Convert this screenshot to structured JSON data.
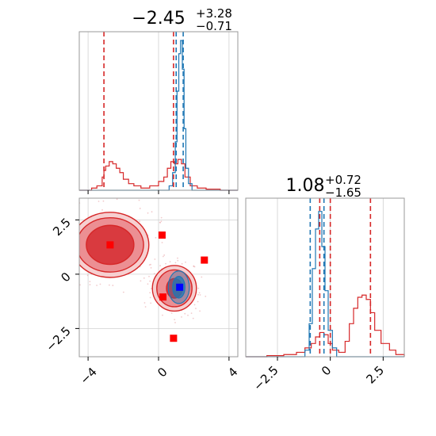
{
  "chart_data": [
    {
      "panel": "hist-param-1",
      "type": "histogram",
      "title": {
        "value": "−2.45",
        "upper": "+3.28",
        "lower": "−0.71"
      },
      "xlim": [
        -4.5,
        4.5
      ],
      "xticks": [
        -4,
        0,
        4
      ],
      "grid": true,
      "colors": {
        "red": "#d62728",
        "blue": "#1f77b4"
      },
      "series": [
        {
          "color": "red",
          "bins": [
            [
              -4.5,
              0
            ],
            [
              -3.8,
              1
            ],
            [
              -3.5,
              2
            ],
            [
              -3.2,
              6
            ],
            [
              -3.1,
              9
            ],
            [
              -3.0,
              11
            ],
            [
              -2.8,
              13
            ],
            [
              -2.6,
              12
            ],
            [
              -2.4,
              10
            ],
            [
              -2.2,
              8
            ],
            [
              -2.0,
              5
            ],
            [
              -1.7,
              3
            ],
            [
              -1.4,
              2
            ],
            [
              -1.0,
              1
            ],
            [
              -0.5,
              2
            ],
            [
              0.0,
              4
            ],
            [
              0.3,
              6
            ],
            [
              0.5,
              10
            ],
            [
              0.7,
              13
            ],
            [
              0.9,
              12
            ],
            [
              1.1,
              14
            ],
            [
              1.3,
              12
            ],
            [
              1.5,
              6
            ],
            [
              1.8,
              2
            ],
            [
              2.2,
              1
            ],
            [
              2.7,
              0.5
            ],
            [
              3.5,
              0
            ],
            [
              4.5,
              0
            ]
          ]
        },
        {
          "color": "blue",
          "bins": [
            [
              -4.5,
              0
            ],
            [
              0.4,
              0
            ],
            [
              0.6,
              2
            ],
            [
              0.8,
              8
            ],
            [
              0.95,
              22
            ],
            [
              1.05,
              45
            ],
            [
              1.15,
              62
            ],
            [
              1.25,
              68
            ],
            [
              1.35,
              55
            ],
            [
              1.45,
              28
            ],
            [
              1.55,
              10
            ],
            [
              1.7,
              3
            ],
            [
              1.9,
              0
            ],
            [
              4.5,
              0
            ]
          ]
        }
      ],
      "lines": [
        {
          "color": "red",
          "x": -3.1
        },
        {
          "color": "red",
          "x": 0.85
        },
        {
          "color": "blue",
          "x": 1.0
        },
        {
          "color": "blue",
          "x": 1.4
        }
      ]
    },
    {
      "panel": "hist-param-2",
      "type": "histogram",
      "title": {
        "value": "1.08",
        "upper": "+0.72",
        "lower": "−1.65"
      },
      "xlim": [
        -4.0,
        3.5
      ],
      "xticks": [
        -2.5,
        0.0,
        2.5
      ],
      "grid": true,
      "series": [
        {
          "color": "red",
          "bins": [
            [
              -4.0,
              0
            ],
            [
              -3.0,
              0.5
            ],
            [
              -2.2,
              1
            ],
            [
              -1.6,
              2
            ],
            [
              -1.2,
              4
            ],
            [
              -0.9,
              6
            ],
            [
              -0.7,
              9
            ],
            [
              -0.5,
              11
            ],
            [
              -0.3,
              10
            ],
            [
              -0.1,
              6
            ],
            [
              0.1,
              3
            ],
            [
              0.4,
              2
            ],
            [
              0.7,
              7
            ],
            [
              0.9,
              15
            ],
            [
              1.1,
              22
            ],
            [
              1.3,
              27
            ],
            [
              1.5,
              28
            ],
            [
              1.7,
              26
            ],
            [
              1.9,
              20
            ],
            [
              2.1,
              12
            ],
            [
              2.4,
              6
            ],
            [
              2.8,
              3
            ],
            [
              3.1,
              1
            ],
            [
              3.5,
              0
            ]
          ]
        },
        {
          "color": "blue",
          "bins": [
            [
              -4.0,
              0
            ],
            [
              -1.4,
              0
            ],
            [
              -1.2,
              3
            ],
            [
              -1.0,
              15
            ],
            [
              -0.85,
              40
            ],
            [
              -0.7,
              58
            ],
            [
              -0.55,
              66
            ],
            [
              -0.4,
              50
            ],
            [
              -0.25,
              30
            ],
            [
              -0.1,
              12
            ],
            [
              0.1,
              4
            ],
            [
              0.3,
              0
            ],
            [
              3.5,
              0
            ]
          ]
        }
      ],
      "lines": [
        {
          "color": "blue",
          "x": -0.95
        },
        {
          "color": "red",
          "x": -0.5
        },
        {
          "color": "red",
          "x": 0.0
        },
        {
          "color": "blue",
          "x": -0.3
        },
        {
          "color": "red",
          "x": 1.9
        }
      ]
    },
    {
      "panel": "scatter-2d",
      "type": "contour",
      "xlim": [
        -4.5,
        4.5
      ],
      "ylim": [
        -3.8,
        3.5
      ],
      "xticks": [
        -4,
        0,
        4
      ],
      "yticks": [
        -2.5,
        0.0,
        2.5
      ],
      "grid": true,
      "red_regions": [
        {
          "cx": -2.75,
          "cy": 1.35,
          "r1x": 1.35,
          "r1y": 0.9,
          "r2x": 1.9,
          "r2y": 1.25,
          "r3x": 2.2,
          "r3y": 1.5
        },
        {
          "cx": 0.9,
          "cy": -0.65,
          "r1x": 0.45,
          "r1y": 0.45,
          "r2x": 1.0,
          "r2y": 0.85,
          "r3x": 1.25,
          "r3y": 1.05
        }
      ],
      "blue_regions": [
        {
          "cx": 1.15,
          "cy": -0.6,
          "rx": 0.35,
          "ry": 0.5
        },
        {
          "cx": 1.15,
          "cy": -0.6,
          "rx": 0.6,
          "ry": 0.75
        }
      ],
      "red_markers": [
        [
          -2.75,
          1.35
        ],
        [
          0.2,
          1.8
        ],
        [
          2.6,
          0.65
        ],
        [
          0.25,
          -1.05
        ],
        [
          0.85,
          -2.95
        ]
      ],
      "blue_markers": [
        [
          1.2,
          -0.6
        ]
      ]
    }
  ]
}
